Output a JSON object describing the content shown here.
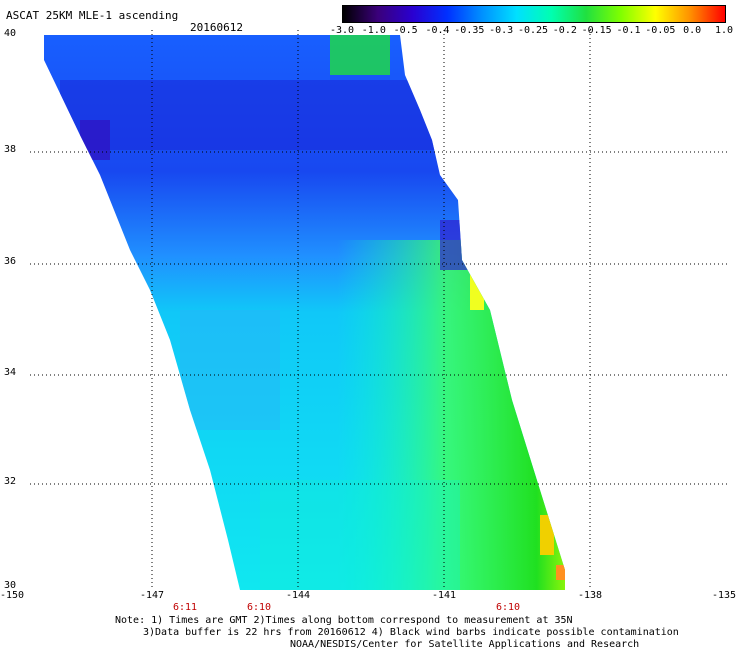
{
  "title": "ASCAT 25KM MLE-1 ascending",
  "date": "20160612",
  "colorbar": {
    "labels": [
      "-3.0",
      "-1.0",
      "-0.5",
      "-0.4",
      "-0.35",
      "-0.3",
      "-0.25",
      "-0.2",
      "-0.15",
      "-0.1",
      "-0.05",
      "0.0",
      "1.0"
    ],
    "colors": [
      "#000000",
      "#3a007a",
      "#2a00d0",
      "#0030ff",
      "#0090ff",
      "#00e0ff",
      "#00ffb0",
      "#20e040",
      "#80ff00",
      "#ffff00",
      "#ff9000",
      "#ff0000"
    ]
  },
  "lat_labels": [
    "40",
    "38",
    "36",
    "34",
    "32",
    "30"
  ],
  "lon_labels": [
    "-150",
    "-147",
    "-144",
    "-141",
    "-138",
    "-135"
  ],
  "time_labels": [
    "6:11",
    "6:10",
    "6:10"
  ],
  "notes": {
    "line1": "Note: 1) Times are GMT 2)Times along bottom correspond to measurement at 35N",
    "line2": "3)Data buffer is 22 hrs from 20160612 4) Black wind barbs indicate possible contamination",
    "line3": "NOAA/NESDIS/Center for Satellite Applications and Research"
  }
}
